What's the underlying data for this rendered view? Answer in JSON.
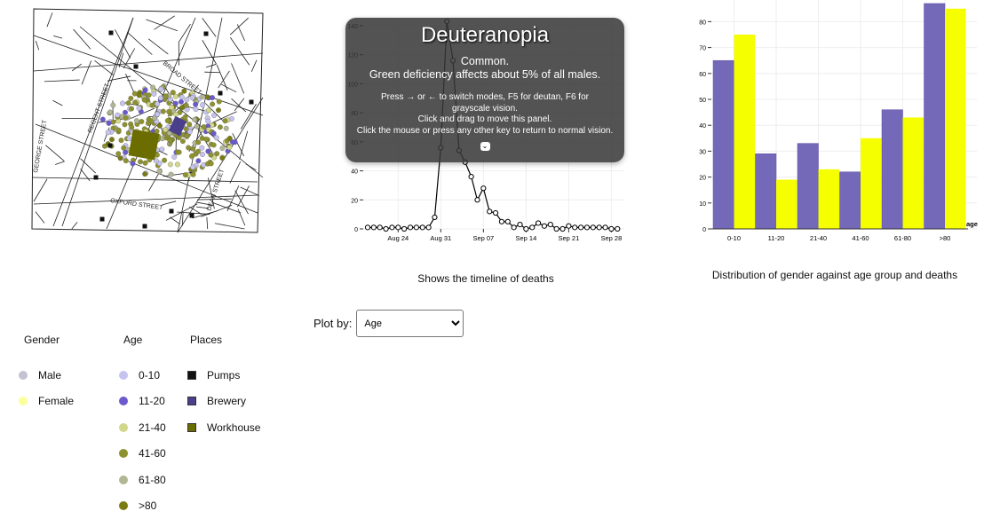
{
  "map": {
    "street_labels": [
      "GEORGE STREET",
      "REGENT STREET",
      "BROAD STREET",
      "OXFORD STREET",
      "DEAN STREET"
    ],
    "workhouse_label": "workhouse",
    "brewery_label": "brewery"
  },
  "timeline": {
    "caption": "Shows the timeline of deaths"
  },
  "distribution": {
    "caption": "Distribution of gender against age group and deaths"
  },
  "plot_by": {
    "label": "Plot by:",
    "selected": "Age"
  },
  "legend": {
    "gender": {
      "title": "Gender",
      "items": [
        {
          "label": "Male",
          "color": "#c3c2d2"
        },
        {
          "label": "Female",
          "color": "#fbff9c"
        }
      ]
    },
    "age": {
      "title": "Age",
      "items": [
        {
          "label": "0-10",
          "color": "#c6c3ee"
        },
        {
          "label": "11-20",
          "color": "#6a5acd"
        },
        {
          "label": "21-40",
          "color": "#d3d78a"
        },
        {
          "label": "41-60",
          "color": "#8e922e"
        },
        {
          "label": "61-80",
          "color": "#b2b793"
        },
        {
          "label": ">80",
          "color": "#7a7c12"
        }
      ]
    },
    "places": {
      "title": "Places",
      "items": [
        {
          "label": "Pumps",
          "color": "#111111"
        },
        {
          "label": "Brewery",
          "color": "#4a3f8a"
        },
        {
          "label": "Workhouse",
          "color": "#6b6d00"
        }
      ]
    }
  },
  "overlay": {
    "title": "Deuteranopia",
    "subtitle1": "Common.",
    "subtitle2": "Green deficiency affects about 5% of all males.",
    "line1": "Press → or ← to switch modes, F5 for deutan, F6 for grayscale vision.",
    "line2": "Click and drag to move this panel.",
    "line3": "Click the mouse or press any other key to return to normal vision.",
    "toggle": "⌄"
  },
  "chart_data": [
    {
      "type": "line",
      "title": "",
      "xlabel": "",
      "ylabel": "",
      "x_start": "Aug 19",
      "x_ticks": [
        "Aug 24",
        "Aug 31",
        "Sep 07",
        "Sep 14",
        "Sep 21",
        "Sep 28"
      ],
      "x_tick_day_offsets": [
        5,
        12,
        19,
        26,
        33,
        40
      ],
      "y_ticks": [
        0,
        20,
        40,
        60,
        80,
        100,
        120,
        140
      ],
      "ylim": [
        0,
        140
      ],
      "grid": true,
      "values": [
        1,
        1,
        1,
        0,
        1,
        1,
        0,
        1,
        1,
        1,
        1,
        8,
        56,
        143,
        116,
        54,
        46,
        36,
        20,
        28,
        12,
        11,
        5,
        5,
        1,
        3,
        0,
        1,
        4,
        2,
        3,
        0,
        0,
        2,
        1,
        1,
        1,
        1,
        1,
        1,
        0,
        0
      ]
    },
    {
      "type": "bar",
      "title": "",
      "xlabel": "age",
      "ylabel": "",
      "categories": [
        "0-10",
        "11-20",
        "21-40",
        "41-60",
        "61-80",
        ">80"
      ],
      "y_ticks": [
        0,
        10,
        20,
        30,
        40,
        50,
        60,
        70,
        80
      ],
      "ylim": [
        0,
        87
      ],
      "grid": true,
      "series": [
        {
          "name": "Male",
          "color": "#7468b8",
          "values": [
            65,
            29,
            33,
            22,
            46,
            87
          ]
        },
        {
          "name": "Female",
          "color": "#f5ff00",
          "values": [
            75,
            19,
            23,
            35,
            43,
            85
          ]
        }
      ]
    }
  ]
}
